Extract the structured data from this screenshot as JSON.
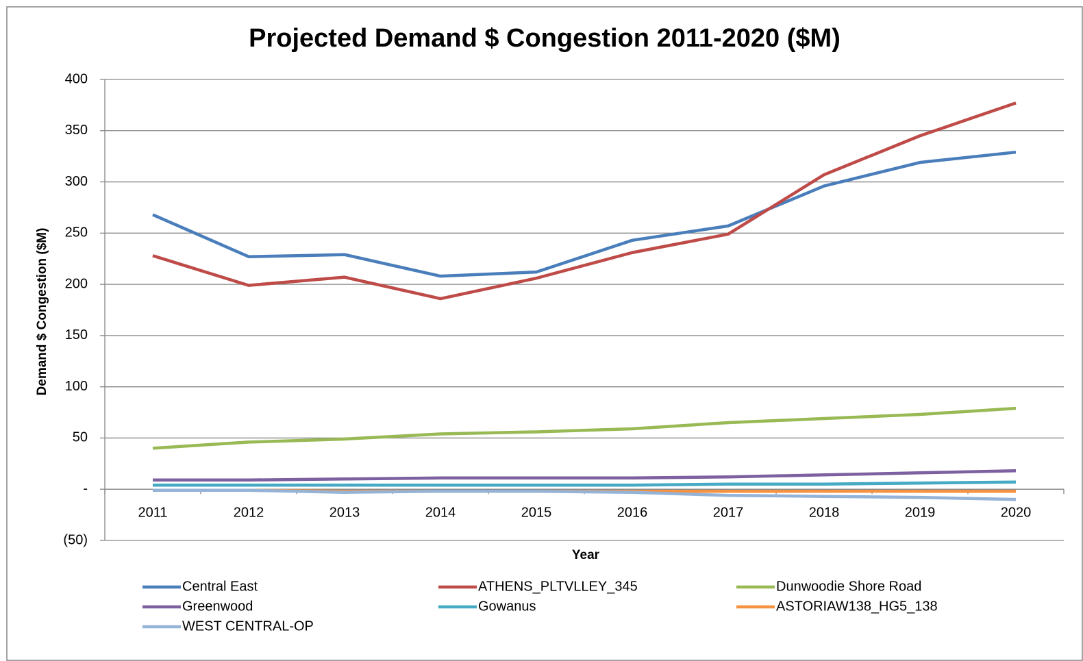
{
  "chart_data": {
    "type": "line",
    "title": "Projected Demand $ Congestion 2011-2020 ($M)",
    "x_label": "Year",
    "y_label": "Demand $ Congestion ($M)",
    "categories": [
      "2011",
      "2012",
      "2013",
      "2014",
      "2015",
      "2016",
      "2017",
      "2018",
      "2019",
      "2020"
    ],
    "series": [
      {
        "name": "Central East",
        "color": "#4a7ebb",
        "values": [
          268,
          227,
          229,
          208,
          212,
          243,
          257,
          296,
          319,
          329
        ]
      },
      {
        "name": "ATHENS_PLTVLLEY_345",
        "color": "#be4b48",
        "values": [
          228,
          199,
          207,
          186,
          206,
          231,
          249,
          307,
          345,
          377
        ]
      },
      {
        "name": "Dunwoodie Shore Road",
        "color": "#98b954",
        "values": [
          40,
          46,
          49,
          54,
          56,
          59,
          65,
          69,
          73,
          79
        ]
      },
      {
        "name": "Greenwood",
        "color": "#7d60a0",
        "values": [
          9,
          9,
          10,
          11,
          11,
          11,
          12,
          14,
          16,
          18
        ]
      },
      {
        "name": "Gowanus",
        "color": "#46aac5",
        "values": [
          4,
          4,
          4,
          4,
          4,
          4,
          5,
          5,
          6,
          7
        ]
      },
      {
        "name": "ASTORIAW138_HG5_138",
        "color": "#f69240",
        "values": [
          -1,
          -1,
          -2,
          -2,
          -2,
          -2,
          -2,
          -2,
          -2,
          -2
        ]
      },
      {
        "name": "WEST CENTRAL-OP",
        "color": "#95b3d7",
        "values": [
          -1,
          -1,
          -3,
          -2,
          -2,
          -3,
          -6,
          -7,
          -8,
          -10
        ]
      }
    ],
    "ylim": [
      -50,
      400
    ],
    "yticks": [
      400,
      350,
      300,
      250,
      200,
      150,
      100,
      50,
      {
        "value": 0,
        "label": "-"
      },
      {
        "value": -50,
        "label": "(50)"
      }
    ],
    "grid": true,
    "legend": "bottom"
  }
}
